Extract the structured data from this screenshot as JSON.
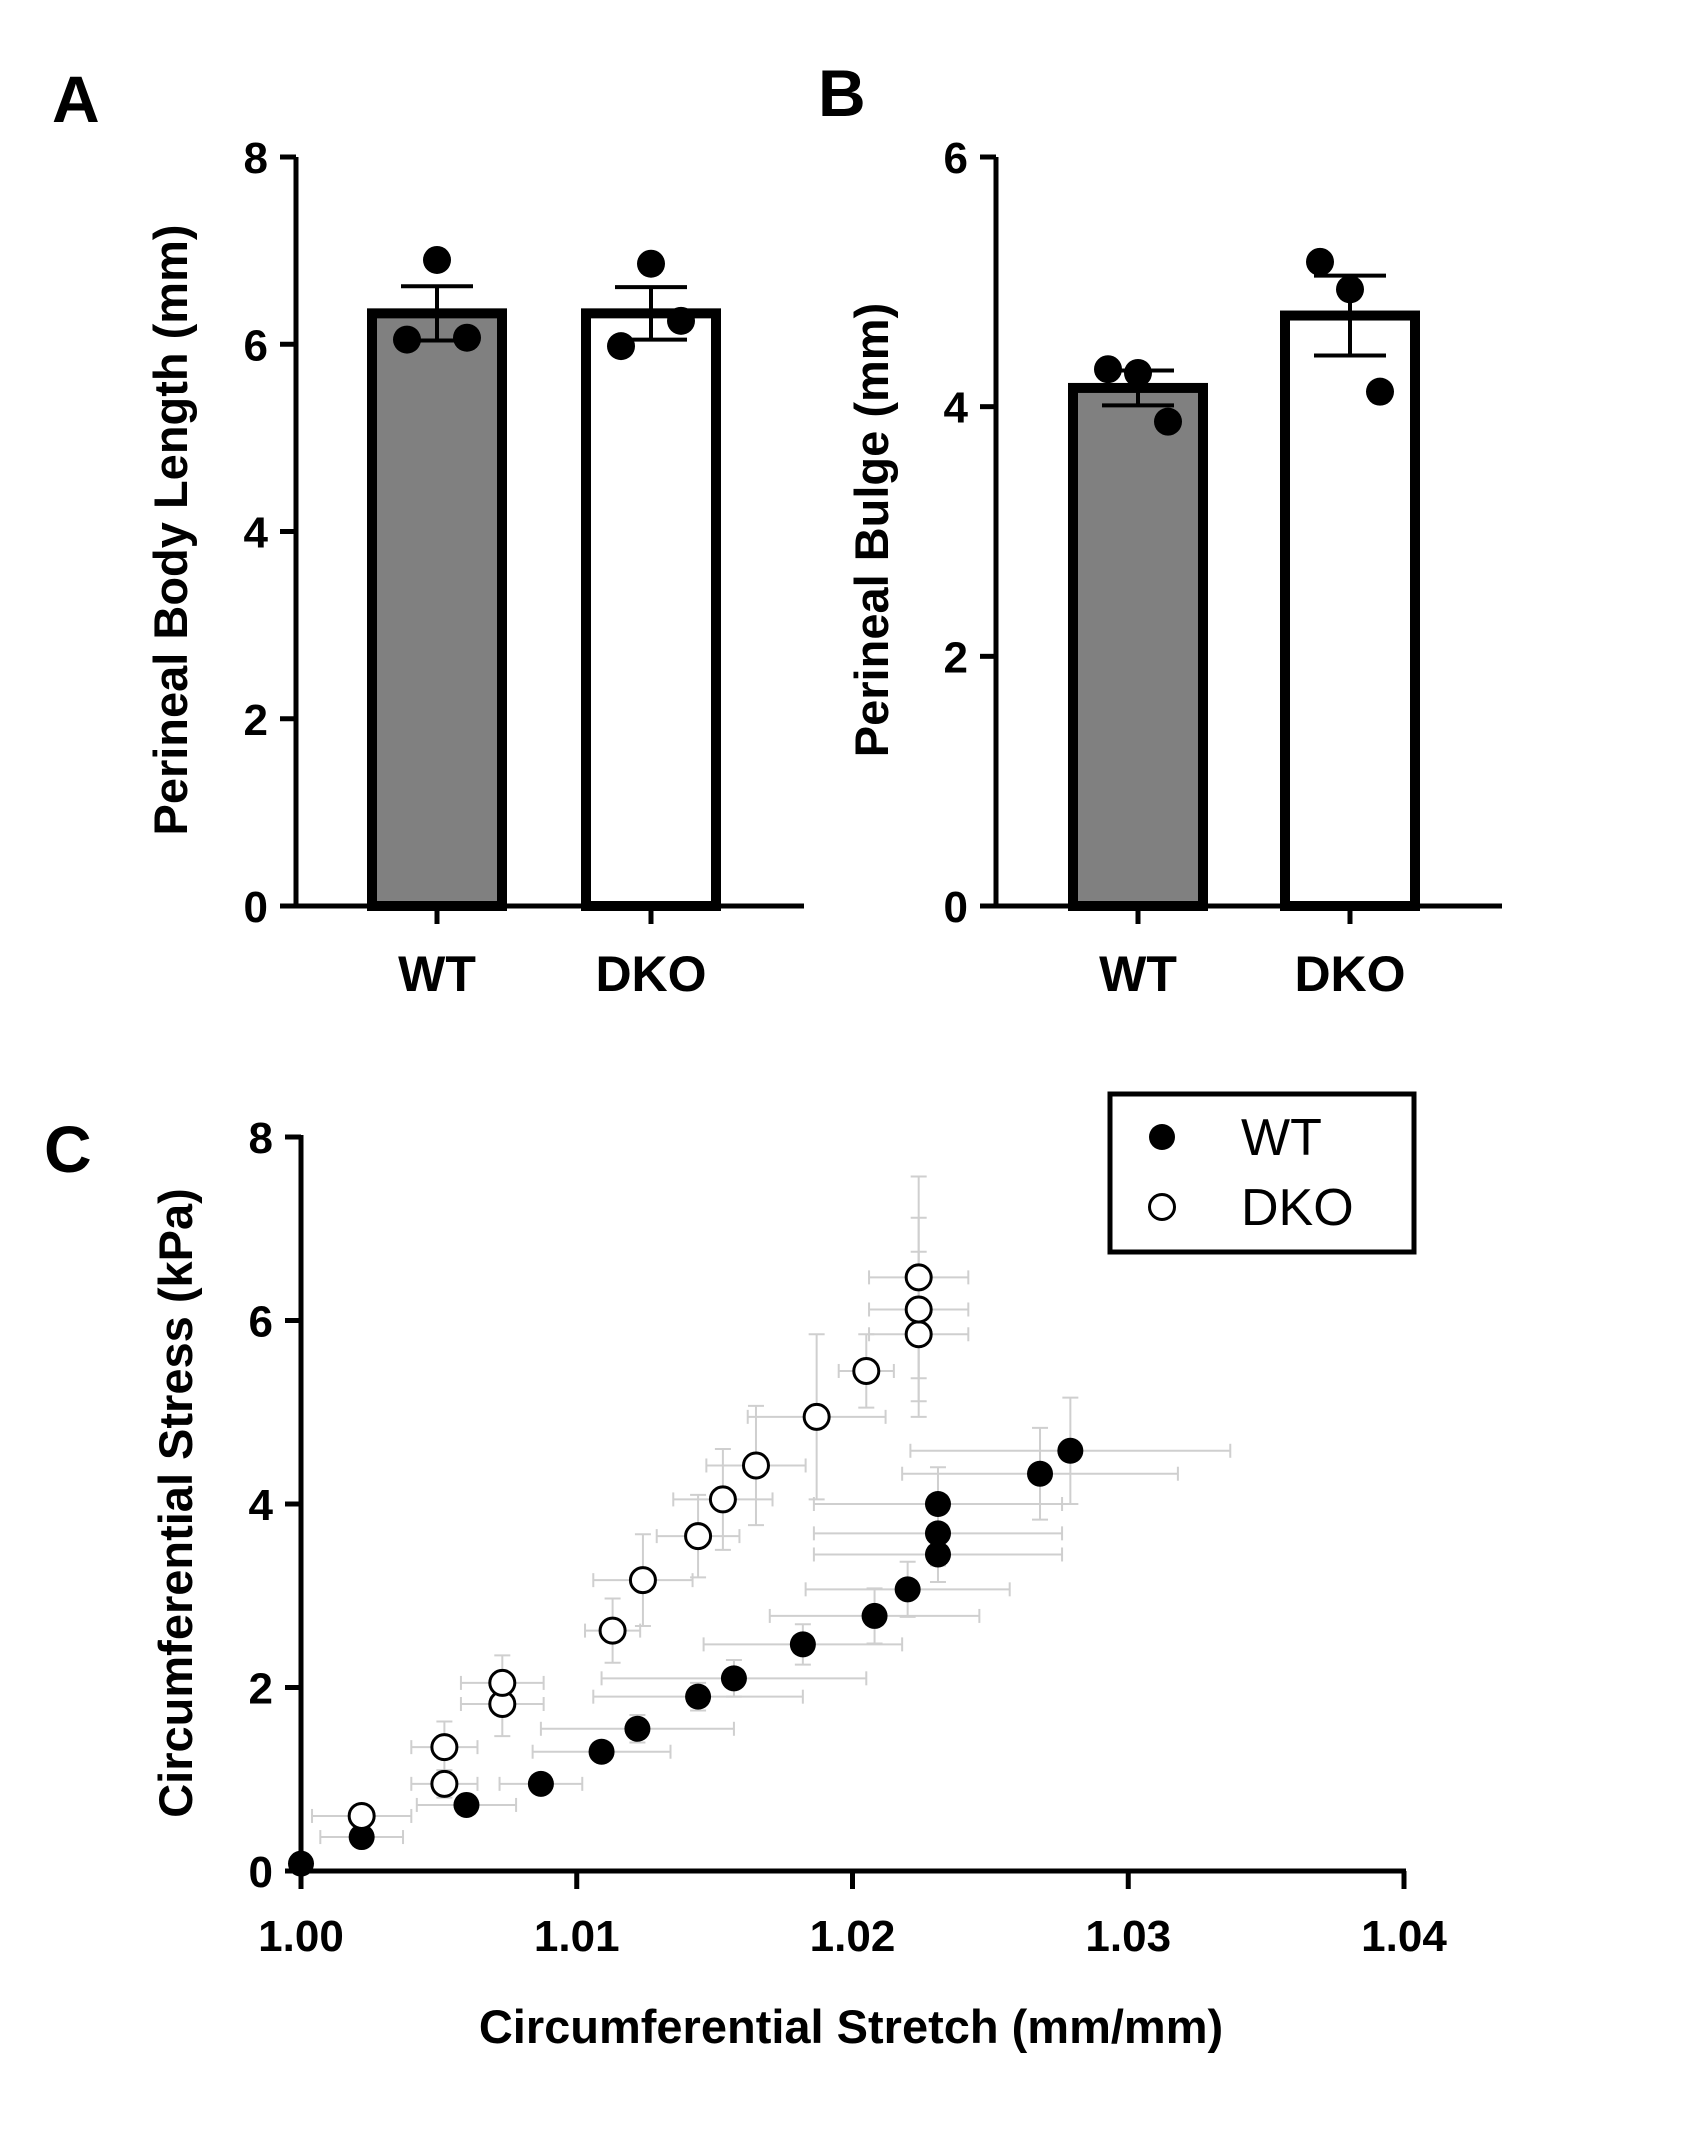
{
  "colors": {
    "wt_bar_fill": "#808080",
    "dko_bar_fill": "#ffffff",
    "error_bar_gray": "#cfcfcf",
    "black": "#000000"
  },
  "chart_data": [
    {
      "panel": "A",
      "type": "bar",
      "categories": [
        "WT",
        "DKO"
      ],
      "values": [
        6.33,
        6.33
      ],
      "sem": [
        0.29,
        0.28
      ],
      "points": [
        [
          6.05,
          6.9,
          6.07
        ],
        [
          5.98,
          6.86,
          6.25
        ]
      ],
      "ylabel": "Perineal Body  Length (mm)",
      "ylim": [
        0,
        8
      ],
      "yticks": [
        "0",
        "2",
        "4",
        "6",
        "8"
      ]
    },
    {
      "panel": "B",
      "type": "bar",
      "categories": [
        "WT",
        "DKO"
      ],
      "values": [
        4.15,
        4.73
      ],
      "sem": [
        0.14,
        0.32
      ],
      "points": [
        [
          4.3,
          4.27,
          3.88
        ],
        [
          5.16,
          4.94,
          4.12
        ]
      ],
      "ylabel": "Perineal Bulge (mm)",
      "ylim": [
        0,
        6
      ],
      "yticks": [
        "0",
        "2",
        "4",
        "6"
      ]
    },
    {
      "panel": "C",
      "type": "scatter",
      "xlabel": "Circumferential Stretch (mm/mm)",
      "ylabel": "Circumferential Stress (kPa)",
      "xlim": [
        1.0,
        1.04
      ],
      "ylim": [
        0,
        8
      ],
      "xticks": [
        "1.00",
        "1.01",
        "1.02",
        "1.03",
        "1.04"
      ],
      "yticks": [
        "0",
        "2",
        "4",
        "6",
        "8"
      ],
      "legend_position": "top-right",
      "series": [
        {
          "name": "WT",
          "marker": "filled-circle",
          "points": [
            {
              "x": 1.0,
              "y": 0.08,
              "xerr": 0,
              "yerr": 0
            },
            {
              "x": 1.0022,
              "y": 0.37,
              "xerr": 0.0015,
              "yerr": 0.05
            },
            {
              "x": 1.006,
              "y": 0.72,
              "xerr": 0.0018,
              "yerr": 0.08
            },
            {
              "x": 1.0087,
              "y": 0.95,
              "xerr": 0.0015,
              "yerr": 0.08
            },
            {
              "x": 1.0109,
              "y": 1.3,
              "xerr": 0.0025,
              "yerr": 0.1
            },
            {
              "x": 1.0122,
              "y": 1.55,
              "xerr": 0.0035,
              "yerr": 0.15
            },
            {
              "x": 1.0144,
              "y": 1.9,
              "xerr": 0.0038,
              "yerr": 0.15
            },
            {
              "x": 1.0157,
              "y": 2.1,
              "xerr": 0.0048,
              "yerr": 0.2
            },
            {
              "x": 1.0182,
              "y": 2.47,
              "xerr": 0.0036,
              "yerr": 0.22
            },
            {
              "x": 1.0208,
              "y": 2.78,
              "xerr": 0.0038,
              "yerr": 0.3
            },
            {
              "x": 1.022,
              "y": 3.07,
              "xerr": 0.0037,
              "yerr": 0.3
            },
            {
              "x": 1.0231,
              "y": 3.45,
              "xerr": 0.0045,
              "yerr": 0.3
            },
            {
              "x": 1.0231,
              "y": 3.68,
              "xerr": 0.0045,
              "yerr": 0.35
            },
            {
              "x": 1.0231,
              "y": 4.0,
              "xerr": 0.0045,
              "yerr": 0.4
            },
            {
              "x": 1.0268,
              "y": 4.33,
              "xerr": 0.005,
              "yerr": 0.5
            },
            {
              "x": 1.0279,
              "y": 4.58,
              "xerr": 0.0058,
              "yerr": 0.58
            }
          ]
        },
        {
          "name": "DKO",
          "marker": "open-circle",
          "points": [
            {
              "x": 1.0022,
              "y": 0.6,
              "xerr": 0.0018,
              "yerr": 0.1
            },
            {
              "x": 1.0052,
              "y": 0.95,
              "xerr": 0.0012,
              "yerr": 0.15
            },
            {
              "x": 1.0052,
              "y": 1.35,
              "xerr": 0.0012,
              "yerr": 0.28
            },
            {
              "x": 1.0073,
              "y": 1.82,
              "xerr": 0.0015,
              "yerr": 0.35
            },
            {
              "x": 1.0073,
              "y": 2.05,
              "xerr": 0.0015,
              "yerr": 0.3
            },
            {
              "x": 1.0113,
              "y": 2.62,
              "xerr": 0.001,
              "yerr": 0.35
            },
            {
              "x": 1.0124,
              "y": 3.17,
              "xerr": 0.0018,
              "yerr": 0.5
            },
            {
              "x": 1.0144,
              "y": 3.65,
              "xerr": 0.0015,
              "yerr": 0.45
            },
            {
              "x": 1.0153,
              "y": 4.05,
              "xerr": 0.0018,
              "yerr": 0.55
            },
            {
              "x": 1.0165,
              "y": 4.42,
              "xerr": 0.0018,
              "yerr": 0.65
            },
            {
              "x": 1.0187,
              "y": 4.95,
              "xerr": 0.0025,
              "yerr": 0.9
            },
            {
              "x": 1.0205,
              "y": 5.45,
              "xerr": 0.001,
              "yerr": 0.4
            },
            {
              "x": 1.0224,
              "y": 5.85,
              "xerr": 0.0018,
              "yerr": 0.9
            },
            {
              "x": 1.0224,
              "y": 6.12,
              "xerr": 0.0018,
              "yerr": 1.0
            },
            {
              "x": 1.0224,
              "y": 6.47,
              "xerr": 0.0018,
              "yerr": 1.1
            }
          ]
        }
      ]
    }
  ]
}
